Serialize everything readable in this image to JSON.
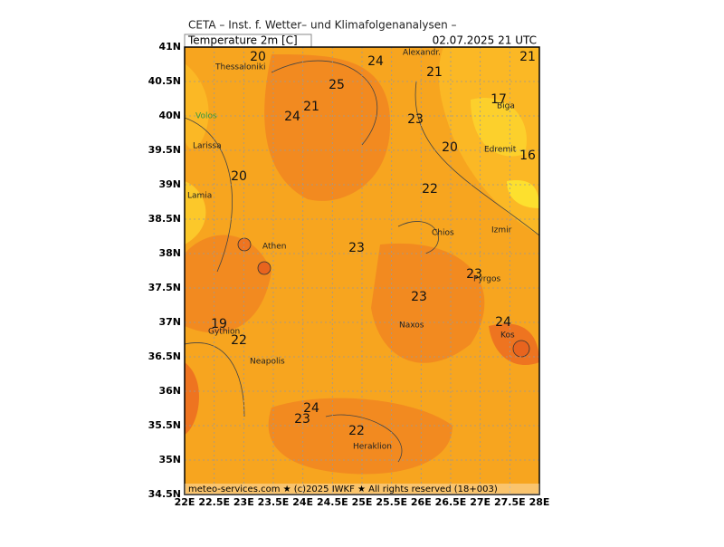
{
  "header": {
    "title": "CETA – Inst. f. Wetter– und Klimafolgenanalysen –",
    "subtitle": "Temperature 2m [C]",
    "valid_time": "02.07.2025 21 UTC"
  },
  "map": {
    "lat_ticks": [
      {
        "value": 41,
        "label": "41N"
      },
      {
        "value": 40.5,
        "label": "40.5N"
      },
      {
        "value": 40,
        "label": "40N"
      },
      {
        "value": 39.5,
        "label": "39.5N"
      },
      {
        "value": 39,
        "label": "39N"
      },
      {
        "value": 38.5,
        "label": "38.5N"
      },
      {
        "value": 38,
        "label": "38N"
      },
      {
        "value": 37.5,
        "label": "37.5N"
      },
      {
        "value": 37,
        "label": "37N"
      },
      {
        "value": 36.5,
        "label": "36.5N"
      },
      {
        "value": 36,
        "label": "36N"
      },
      {
        "value": 35.5,
        "label": "35.5N"
      },
      {
        "value": 35,
        "label": "35N"
      },
      {
        "value": 34.5,
        "label": "34.5N"
      }
    ],
    "lon_ticks": [
      {
        "value": 22,
        "label": "22E"
      },
      {
        "value": 22.5,
        "label": "22.5E"
      },
      {
        "value": 23,
        "label": "23E"
      },
      {
        "value": 23.5,
        "label": "23.5E"
      },
      {
        "value": 24,
        "label": "24E"
      },
      {
        "value": 24.5,
        "label": "24.5E"
      },
      {
        "value": 25,
        "label": "25E"
      },
      {
        "value": 25.5,
        "label": "25.5E"
      },
      {
        "value": 26,
        "label": "26E"
      },
      {
        "value": 26.5,
        "label": "26.5E"
      },
      {
        "value": 27,
        "label": "27E"
      },
      {
        "value": 27.5,
        "label": "27.5E"
      },
      {
        "value": 28,
        "label": "28E"
      }
    ],
    "lat_lim": [
      34.5,
      41
    ],
    "lon_lim": [
      22,
      28
    ],
    "cities": [
      "Alexandr.",
      "Thessaloniki",
      "Volos",
      "Biga",
      "Larissa",
      "Edremit",
      "Lamia",
      "Chios",
      "Izmir",
      "Athen",
      "Pyrgos",
      "Naxos",
      "Kos",
      "Gythion",
      "Neapolis",
      "Heraklion"
    ],
    "contour_labels": [
      20,
      24,
      21,
      21,
      25,
      21,
      24,
      23,
      17,
      20,
      16,
      20,
      22,
      23,
      23,
      23,
      19,
      24,
      22,
      24,
      23,
      22
    ]
  },
  "footer": "meteo-services.com ★ (c)2025 IWKF ★ All rights reserved (18+003)"
}
